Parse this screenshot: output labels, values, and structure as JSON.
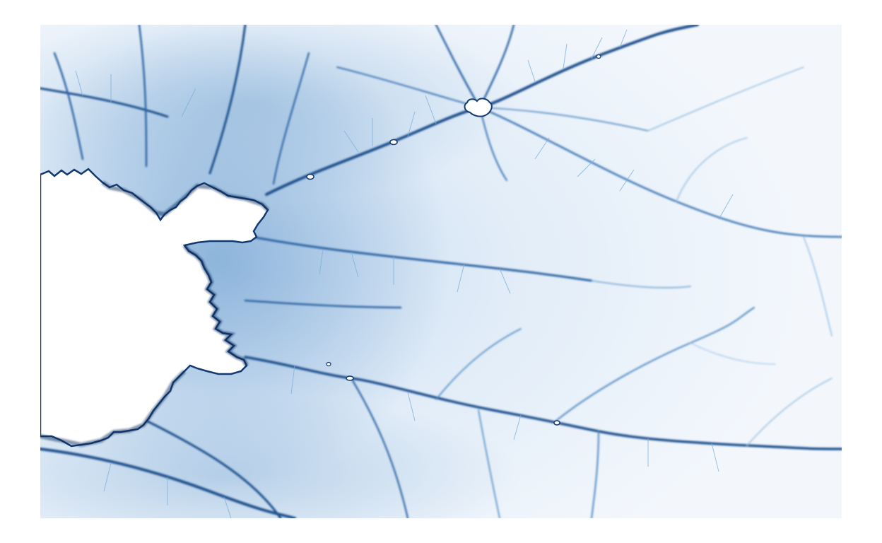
{
  "image": {
    "subject": "fractal",
    "colors": {
      "page_background": "#ffffff",
      "field_light": "#f4f8fd",
      "field_mid": "#dbe8f6",
      "filament_light": "#9fc3e6",
      "filament_mid": "#4a86c0",
      "filament_dark": "#1f4f8c",
      "filament_deep": "#123a70",
      "interior": "#ffffff"
    }
  }
}
